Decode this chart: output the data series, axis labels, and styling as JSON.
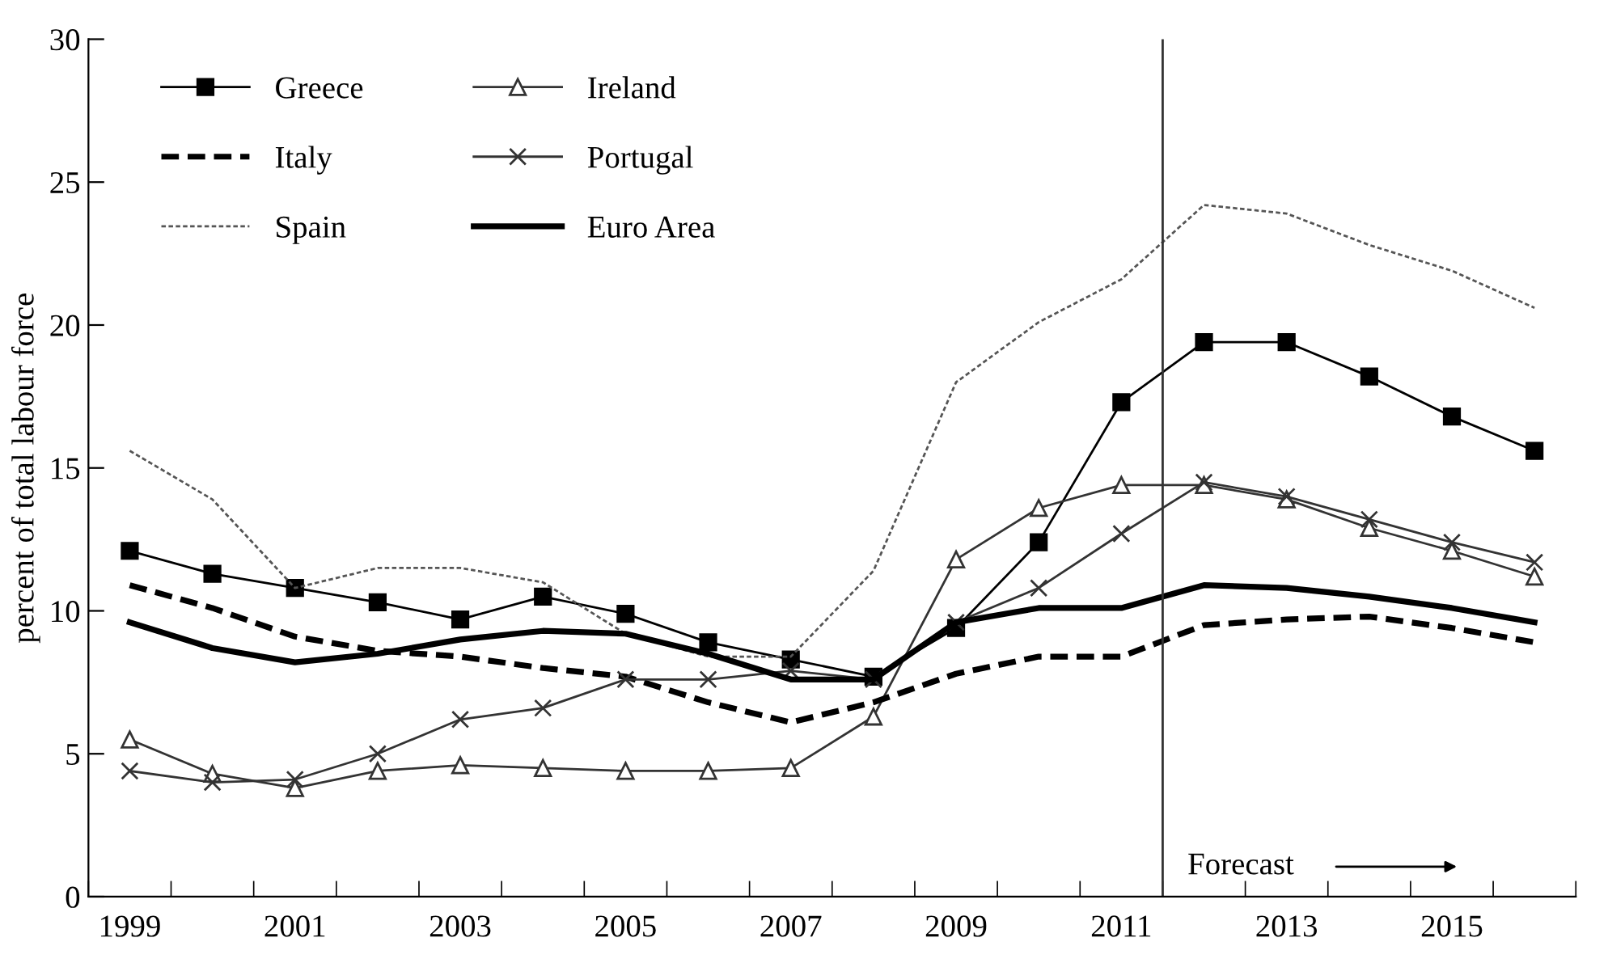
{
  "chart_data": {
    "type": "line",
    "ylabel": "percent of total labour force",
    "x": [
      1999,
      2000,
      2001,
      2002,
      2003,
      2004,
      2005,
      2006,
      2007,
      2008,
      2009,
      2010,
      2011,
      2012,
      2013,
      2014,
      2015,
      2016
    ],
    "xlim": [
      1998.5,
      2016.5
    ],
    "xticks": [
      {
        "value": 1998.5,
        "label": null
      },
      1999,
      {
        "value": 1999.5,
        "label": null
      },
      {
        "value": 2000.5,
        "label": null
      },
      2001,
      {
        "value": 2001.5,
        "label": null
      },
      {
        "value": 2002.5,
        "label": null
      },
      2003,
      {
        "value": 2003.5,
        "label": null
      },
      {
        "value": 2004.5,
        "label": null
      },
      2005,
      {
        "value": 2005.5,
        "label": null
      },
      {
        "value": 2006.5,
        "label": null
      },
      2007,
      {
        "value": 2007.5,
        "label": null
      },
      {
        "value": 2008.5,
        "label": null
      },
      2009,
      {
        "value": 2009.5,
        "label": null
      },
      {
        "value": 2010.5,
        "label": null
      },
      2011,
      {
        "value": 2011.5,
        "label": null
      },
      {
        "value": 2012.5,
        "label": null
      },
      2013,
      {
        "value": 2013.5,
        "label": null
      },
      {
        "value": 2014.5,
        "label": null
      },
      2015,
      {
        "value": 2015.5,
        "label": null
      },
      {
        "value": 2016.5,
        "label": null
      }
    ],
    "ylim": [
      0,
      30
    ],
    "yticks": [
      0,
      5,
      10,
      15,
      20,
      25,
      30
    ],
    "grid": false,
    "legend": "top left",
    "series": [
      {
        "name": "Greece",
        "color": "#000000",
        "marker": "square",
        "line_style": "solid",
        "values": [
          12.1,
          11.3,
          10.8,
          10.3,
          9.7,
          10.5,
          9.9,
          8.9,
          8.3,
          7.7,
          9.4,
          12.4,
          17.3,
          19.4,
          19.4,
          18.2,
          16.8,
          15.6
        ]
      },
      {
        "name": "Ireland",
        "color": "#333333",
        "marker": "triangle",
        "line_style": "solid",
        "values": [
          5.5,
          4.3,
          3.8,
          4.4,
          4.6,
          4.5,
          4.4,
          4.4,
          4.5,
          6.3,
          11.8,
          13.6,
          14.4,
          14.4,
          13.9,
          12.9,
          12.1,
          11.2
        ]
      },
      {
        "name": "Italy",
        "color": "#000000",
        "marker": "none",
        "line_style": "dashed",
        "values": [
          10.9,
          10.1,
          9.1,
          8.6,
          8.4,
          8.0,
          7.7,
          6.8,
          6.1,
          6.8,
          7.8,
          8.4,
          8.4,
          9.5,
          9.7,
          9.8,
          9.4,
          8.9
        ]
      },
      {
        "name": "Portugal",
        "color": "#333333",
        "marker": "cross",
        "line_style": "solid",
        "values": [
          4.4,
          4.0,
          4.1,
          5.0,
          6.2,
          6.6,
          7.6,
          7.6,
          7.9,
          7.6,
          9.6,
          10.8,
          12.7,
          14.5,
          14.0,
          13.2,
          12.4,
          11.7
        ]
      },
      {
        "name": "Spain",
        "color": "#555555",
        "marker": "none",
        "line_style": "dotted",
        "values": [
          15.6,
          13.9,
          10.8,
          11.5,
          11.5,
          11.0,
          9.2,
          8.4,
          8.4,
          11.4,
          18.0,
          20.1,
          21.6,
          24.2,
          23.9,
          22.8,
          21.9,
          20.6
        ]
      },
      {
        "name": "Euro Area",
        "color": "#000000",
        "marker": "none",
        "line_style": "solid",
        "values": [
          9.6,
          8.7,
          8.2,
          8.5,
          9.0,
          9.3,
          9.2,
          8.5,
          7.6,
          7.6,
          9.6,
          10.1,
          10.1,
          10.9,
          10.8,
          10.5,
          10.1,
          9.6
        ]
      }
    ],
    "ref_lines": [
      {
        "axis": "x",
        "value": 2011.5,
        "color": "#333333"
      }
    ],
    "annotations": [
      "Forecast"
    ]
  }
}
